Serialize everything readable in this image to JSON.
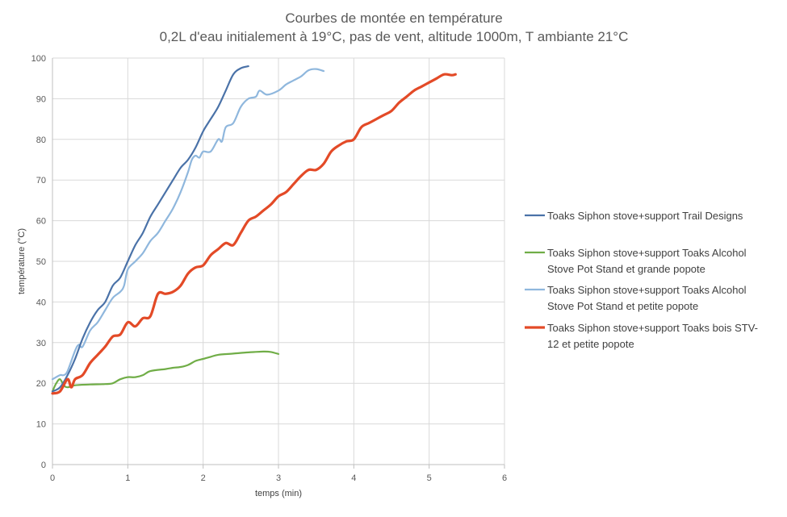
{
  "chart_data": {
    "type": "line",
    "title": "Courbes de montée en température",
    "subtitle": "0,2L d'eau initialement à 19°C, pas de vent, altitude 1000m, T ambiante 21°C",
    "xlabel": "temps (min)",
    "ylabel": "température (°C)",
    "xlim": [
      0,
      6
    ],
    "ylim": [
      0,
      100
    ],
    "x_ticks": [
      "0",
      "1",
      "2",
      "3",
      "4",
      "5",
      "6"
    ],
    "y_ticks": [
      "0",
      "10",
      "20",
      "30",
      "40",
      "50",
      "60",
      "70",
      "80",
      "90",
      "100"
    ],
    "grid": true,
    "legend_position": "right",
    "series": [
      {
        "name": "Toaks Siphon stove+support Trail Designs",
        "color": "#4a72a8",
        "legend_lines": [
          "Toaks Siphon stove+support Trail Designs"
        ],
        "points": [
          [
            0,
            18
          ],
          [
            0.1,
            19
          ],
          [
            0.2,
            22
          ],
          [
            0.3,
            26
          ],
          [
            0.4,
            31
          ],
          [
            0.5,
            35
          ],
          [
            0.6,
            38
          ],
          [
            0.7,
            40
          ],
          [
            0.8,
            44
          ],
          [
            0.9,
            46
          ],
          [
            1.0,
            50
          ],
          [
            1.1,
            54
          ],
          [
            1.2,
            57
          ],
          [
            1.3,
            61
          ],
          [
            1.4,
            64
          ],
          [
            1.5,
            67
          ],
          [
            1.6,
            70
          ],
          [
            1.7,
            73
          ],
          [
            1.8,
            75
          ],
          [
            1.9,
            78
          ],
          [
            2.0,
            82
          ],
          [
            2.1,
            85
          ],
          [
            2.2,
            88
          ],
          [
            2.3,
            92
          ],
          [
            2.4,
            96
          ],
          [
            2.5,
            97.5
          ],
          [
            2.6,
            98
          ]
        ]
      },
      {
        "name": "Toaks Siphon stove+support Toaks Alcohol Stove Pot Stand et grande popote",
        "color": "#70ad47",
        "legend_lines": [
          "Toaks Siphon stove+support Toaks Alcohol",
          "Stove Pot Stand et grande popote"
        ],
        "points": [
          [
            0,
            18
          ],
          [
            0.05,
            20
          ],
          [
            0.1,
            21
          ],
          [
            0.15,
            19.5
          ],
          [
            0.2,
            19
          ],
          [
            0.3,
            19.5
          ],
          [
            0.5,
            19.7
          ],
          [
            0.7,
            19.8
          ],
          [
            0.8,
            20
          ],
          [
            0.9,
            21
          ],
          [
            1.0,
            21.5
          ],
          [
            1.1,
            21.5
          ],
          [
            1.2,
            22
          ],
          [
            1.3,
            23
          ],
          [
            1.5,
            23.5
          ],
          [
            1.6,
            23.8
          ],
          [
            1.7,
            24
          ],
          [
            1.8,
            24.5
          ],
          [
            1.9,
            25.5
          ],
          [
            2.0,
            26
          ],
          [
            2.1,
            26.5
          ],
          [
            2.2,
            27
          ],
          [
            2.4,
            27.3
          ],
          [
            2.6,
            27.6
          ],
          [
            2.8,
            27.8
          ],
          [
            2.9,
            27.7
          ],
          [
            3.0,
            27.2
          ]
        ]
      },
      {
        "name": "Toaks Siphon stove+support Toaks Alcohol Stove Pot Stand et petite popote",
        "color": "#8fb7dd",
        "legend_lines": [
          "Toaks Siphon stove+support Toaks Alcohol",
          "Stove Pot Stand et petite popote"
        ],
        "points": [
          [
            0,
            21
          ],
          [
            0.1,
            22
          ],
          [
            0.15,
            22
          ],
          [
            0.2,
            23
          ],
          [
            0.3,
            28
          ],
          [
            0.35,
            29.5
          ],
          [
            0.4,
            29
          ],
          [
            0.5,
            33
          ],
          [
            0.6,
            35
          ],
          [
            0.7,
            38
          ],
          [
            0.8,
            41
          ],
          [
            0.9,
            42.5
          ],
          [
            0.95,
            44
          ],
          [
            1.0,
            48
          ],
          [
            1.1,
            50
          ],
          [
            1.2,
            52
          ],
          [
            1.3,
            55
          ],
          [
            1.4,
            57
          ],
          [
            1.5,
            60
          ],
          [
            1.6,
            63
          ],
          [
            1.7,
            67
          ],
          [
            1.8,
            72
          ],
          [
            1.85,
            75
          ],
          [
            1.9,
            76
          ],
          [
            1.95,
            75.5
          ],
          [
            2.0,
            77
          ],
          [
            2.1,
            77
          ],
          [
            2.2,
            80
          ],
          [
            2.25,
            79.5
          ],
          [
            2.3,
            83
          ],
          [
            2.4,
            84
          ],
          [
            2.5,
            88
          ],
          [
            2.6,
            90
          ],
          [
            2.7,
            90.5
          ],
          [
            2.75,
            92
          ],
          [
            2.85,
            91
          ],
          [
            3.0,
            92
          ],
          [
            3.1,
            93.5
          ],
          [
            3.2,
            94.5
          ],
          [
            3.3,
            95.5
          ],
          [
            3.4,
            97
          ],
          [
            3.5,
            97.3
          ],
          [
            3.6,
            96.8
          ]
        ]
      },
      {
        "name": "Toaks Siphon stove+support Toaks bois STV-12 et petite popote",
        "color": "#e34a27",
        "legend_lines": [
          "Toaks Siphon stove+support Toaks bois STV-",
          "12 et petite popote"
        ],
        "points": [
          [
            0,
            17.5
          ],
          [
            0.1,
            18
          ],
          [
            0.2,
            21
          ],
          [
            0.25,
            19
          ],
          [
            0.3,
            21
          ],
          [
            0.4,
            22
          ],
          [
            0.5,
            25
          ],
          [
            0.6,
            27
          ],
          [
            0.7,
            29
          ],
          [
            0.8,
            31.5
          ],
          [
            0.9,
            32
          ],
          [
            1.0,
            35
          ],
          [
            1.1,
            34
          ],
          [
            1.2,
            36
          ],
          [
            1.3,
            36.5
          ],
          [
            1.4,
            42
          ],
          [
            1.5,
            42
          ],
          [
            1.6,
            42.5
          ],
          [
            1.7,
            44
          ],
          [
            1.8,
            47
          ],
          [
            1.9,
            48.5
          ],
          [
            2.0,
            49
          ],
          [
            2.1,
            51.5
          ],
          [
            2.2,
            53
          ],
          [
            2.3,
            54.5
          ],
          [
            2.4,
            54
          ],
          [
            2.5,
            57
          ],
          [
            2.6,
            60
          ],
          [
            2.7,
            61
          ],
          [
            2.8,
            62.5
          ],
          [
            2.9,
            64
          ],
          [
            3.0,
            66
          ],
          [
            3.1,
            67
          ],
          [
            3.2,
            69
          ],
          [
            3.3,
            71
          ],
          [
            3.4,
            72.5
          ],
          [
            3.5,
            72.5
          ],
          [
            3.6,
            74
          ],
          [
            3.7,
            77
          ],
          [
            3.8,
            78.5
          ],
          [
            3.9,
            79.5
          ],
          [
            4.0,
            80
          ],
          [
            4.1,
            83
          ],
          [
            4.2,
            84
          ],
          [
            4.3,
            85
          ],
          [
            4.4,
            86
          ],
          [
            4.5,
            87
          ],
          [
            4.6,
            89
          ],
          [
            4.7,
            90.5
          ],
          [
            4.8,
            92
          ],
          [
            4.9,
            93
          ],
          [
            5.0,
            94
          ],
          [
            5.1,
            95
          ],
          [
            5.2,
            96
          ],
          [
            5.3,
            95.8
          ],
          [
            5.35,
            96
          ]
        ]
      }
    ]
  }
}
